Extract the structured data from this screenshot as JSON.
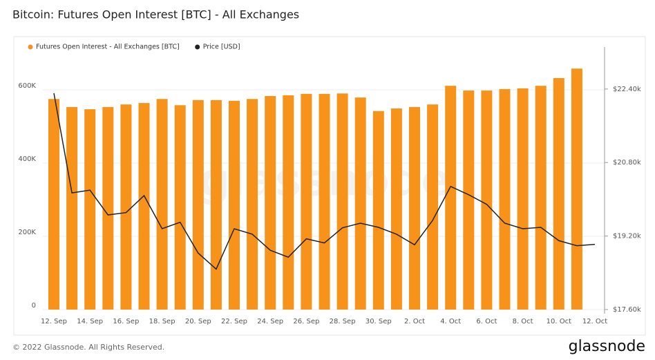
{
  "chart_data": {
    "type": "bar_line",
    "title": "Bitcoin: Futures Open Interest [BTC] - All Exchanges",
    "categories": [
      "12. Sep",
      null,
      "14. Sep",
      null,
      "16. Sep",
      null,
      "18. Sep",
      null,
      "20. Sep",
      null,
      "22. Sep",
      null,
      "24. Sep",
      null,
      "26. Sep",
      null,
      "28. Sep",
      null,
      "30. Sep",
      null,
      "2. Oct",
      null,
      "4. Oct",
      null,
      "6. Oct",
      null,
      "8. Oct",
      null,
      "10. Oct",
      null,
      "12. Oct"
    ],
    "series": [
      {
        "name": "Futures Open Interest - All Exchanges [BTC]",
        "color": "#f7931a",
        "axis": "y",
        "values": [
          575000,
          553000,
          547000,
          553000,
          560000,
          564000,
          575000,
          558000,
          572000,
          572000,
          570000,
          575000,
          583000,
          585000,
          589000,
          589000,
          590000,
          579000,
          542000,
          549000,
          553000,
          560000,
          611000,
          598000,
          598000,
          602000,
          604000,
          611000,
          632000,
          658000,
          null
        ]
      },
      {
        "name": "Price [USD]",
        "color": "#222222",
        "axis": "y2",
        "values": [
          22310,
          20140,
          20200,
          19660,
          19710,
          20080,
          19360,
          19500,
          18830,
          18480,
          19360,
          19240,
          18890,
          18740,
          19140,
          19050,
          19380,
          19480,
          19390,
          19240,
          19010,
          19540,
          20280,
          20100,
          19890,
          19480,
          19360,
          19390,
          19100,
          18990,
          19020
        ]
      }
    ],
    "ylim": [
      0,
      700000
    ],
    "yticks": [
      0,
      {
        "value": 200000,
        "label": "200K"
      },
      {
        "value": 400000,
        "label": "400K"
      },
      {
        "value": 600000,
        "label": "600K"
      }
    ],
    "y2lim": [
      17600,
      23180
    ],
    "y2ticks": [
      {
        "value": 17600,
        "label": "$17.60k"
      },
      {
        "value": 19200,
        "label": "$19.20k"
      },
      {
        "value": 20800,
        "label": "$20.80k"
      },
      {
        "value": 22400,
        "label": "$22.40k"
      }
    ],
    "grid": true,
    "legend": "top-left",
    "watermark": "glassnode",
    "footer": "© 2022 Glassnode. All Rights Reserved.",
    "logo": "glassnode"
  }
}
